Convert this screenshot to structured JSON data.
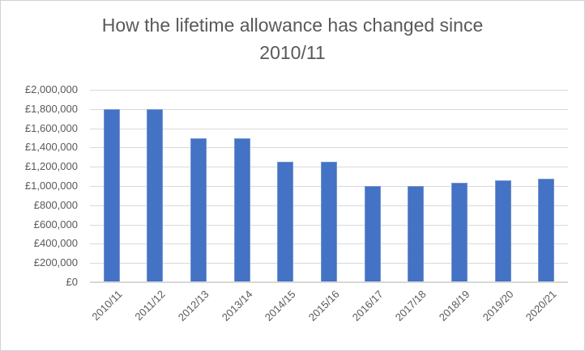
{
  "chart_data": {
    "type": "bar",
    "title": "How the lifetime allowance has changed since 2010/11",
    "categories": [
      "2010/11",
      "2011/12",
      "2012/13",
      "2013/14",
      "2014/15",
      "2015/16",
      "2016/17",
      "2017/18",
      "2018/19",
      "2019/20",
      "2020/21"
    ],
    "values": [
      1800000,
      1800000,
      1500000,
      1500000,
      1250000,
      1250000,
      1000000,
      1000000,
      1030000,
      1055000,
      1073100
    ],
    "y_tick_labels": [
      "£2,000,000",
      "£1,800,000",
      "£1,600,000",
      "£1,400,000",
      "£1,200,000",
      "£1,000,000",
      "£800,000",
      "£600,000",
      "£400,000",
      "£200,000",
      "£0"
    ],
    "ylim": [
      0,
      2000000
    ],
    "y_tick_interval": 200000,
    "xlabel": "",
    "ylabel": "",
    "grid": true,
    "legend": "none",
    "x_label_rotation_deg": 45,
    "bar_color": "#4472C4",
    "gridline_color": "#D9D9D9",
    "axis_line_color": "#D7D7D7",
    "text_color": "#595959",
    "title_color": "#595959",
    "background_color": "#FFFFFF",
    "frame_border_color": "#D2D2D2"
  }
}
